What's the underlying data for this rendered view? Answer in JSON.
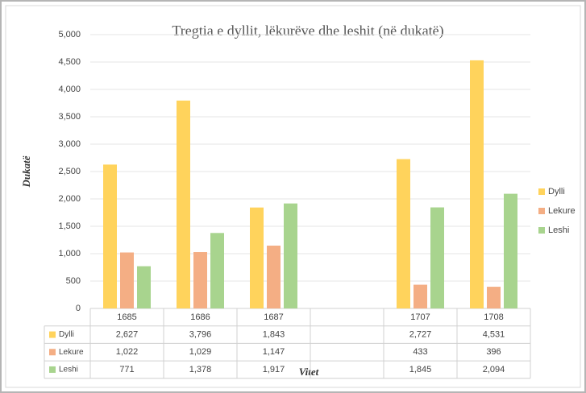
{
  "chart_data": {
    "type": "bar",
    "title": "Tregtia e dyllit, lëkurëve dhe leshit (në dukatë)",
    "y_label": "Dukatë",
    "x_label": "Vitet",
    "categories": [
      "1685",
      "1686",
      "1687",
      null,
      "1707",
      "1708"
    ],
    "series": [
      {
        "name": "Dylli",
        "color": "#ffd35c",
        "values": [
          2627,
          3796,
          1843,
          null,
          2727,
          4531
        ],
        "value_labels": [
          "2,627",
          "3,796",
          "1,843",
          null,
          "2,727",
          "4,531"
        ]
      },
      {
        "name": "Lekure",
        "color": "#f4ae84",
        "values": [
          1022,
          1029,
          1147,
          null,
          433,
          396
        ],
        "value_labels": [
          "1,022",
          "1,029",
          "1,147",
          null,
          "433",
          "396"
        ]
      },
      {
        "name": "Leshi",
        "color": "#a8d48e",
        "values": [
          771,
          1378,
          1917,
          null,
          1845,
          2094
        ],
        "value_labels": [
          "771",
          "1,378",
          "1,917",
          null,
          "1,845",
          "2,094"
        ]
      }
    ],
    "ylim": [
      0,
      5000
    ],
    "yticks": [
      0,
      500,
      {
        "value": 1000,
        "label": "1,000"
      },
      {
        "value": 1500,
        "label": "1,500"
      },
      {
        "value": 2000,
        "label": "2,000"
      },
      {
        "value": 2500,
        "label": "2,500"
      },
      {
        "value": 3000,
        "label": "3,000"
      },
      {
        "value": 3500,
        "label": "3,500"
      },
      {
        "value": 4000,
        "label": "4,000"
      },
      {
        "value": 4500,
        "label": "4,500"
      },
      {
        "value": 5000,
        "label": "5,000"
      }
    ],
    "grid": true,
    "legend": "right"
  }
}
